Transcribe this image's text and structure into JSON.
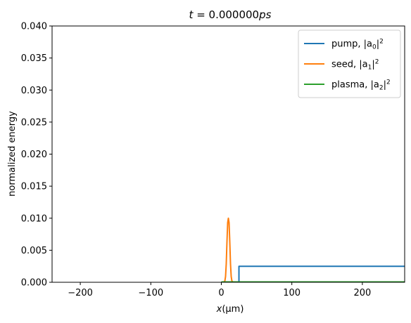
{
  "chart_data": {
    "type": "line",
    "title_t": "t",
    "title_eq": " = 0.000000",
    "title_unit": "ps",
    "xlabel_var": "x",
    "xlabel_unit": "(μm)",
    "ylabel": "normalized energy",
    "xlim": [
      -240,
      260
    ],
    "ylim": [
      0,
      0.04
    ],
    "xticks": [
      -200,
      -100,
      0,
      100,
      200
    ],
    "xtick_labels": [
      "−200",
      "−100",
      "0",
      "100",
      "200"
    ],
    "yticks": [
      0,
      0.005,
      0.01,
      0.015,
      0.02,
      0.025,
      0.03,
      0.035,
      0.04
    ],
    "ytick_labels": [
      "0.000",
      "0.005",
      "0.010",
      "0.015",
      "0.020",
      "0.025",
      "0.030",
      "0.035",
      "0.040"
    ],
    "grid": false,
    "legend_position": "top-right",
    "series": [
      {
        "name": "pump, |a0|²",
        "legend_prefix": "pump, |a",
        "legend_sub": "0",
        "legend_suffix": "|",
        "legend_sup": "2",
        "color": "#1f77b4",
        "x": [
          0,
          25,
          25,
          260
        ],
        "y": [
          0,
          0,
          0.0025,
          0.0025
        ]
      },
      {
        "name": "seed, |a1|²",
        "legend_prefix": "seed, |a",
        "legend_sub": "1",
        "legend_suffix": "|",
        "legend_sup": "2",
        "color": "#ff7f0e",
        "x": [
          3,
          5,
          6,
          7,
          8,
          9,
          10,
          11,
          12,
          13,
          14,
          15,
          17
        ],
        "y": [
          0,
          0.0002,
          0.0009,
          0.0029,
          0.0063,
          0.0093,
          0.01,
          0.0093,
          0.0063,
          0.0029,
          0.0009,
          0.0002,
          0
        ]
      },
      {
        "name": "plasma, |a2|²",
        "legend_prefix": "plasma, |a",
        "legend_sub": "2",
        "legend_suffix": "|",
        "legend_sup": "2",
        "color": "#2ca02c",
        "x": [
          0,
          260
        ],
        "y": [
          5e-05,
          5e-05
        ]
      }
    ]
  }
}
